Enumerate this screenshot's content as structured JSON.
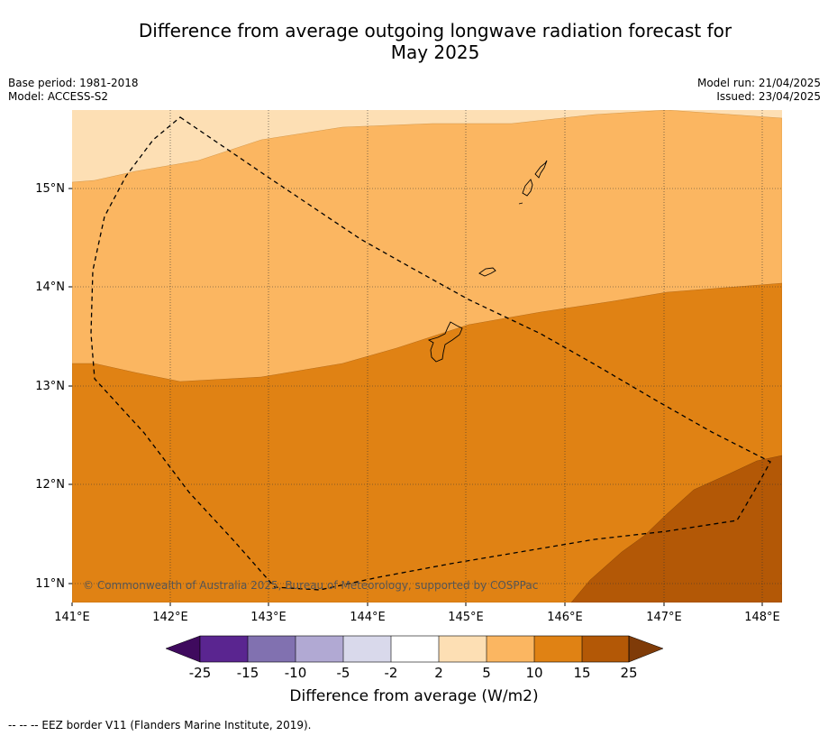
{
  "title_line1": "Difference from average outgoing longwave radiation forecast for",
  "title_line2": "May 2025",
  "meta": {
    "base_period": "Base period: 1981-2018",
    "model": "Model: ACCESS-S2",
    "model_run": "Model run: 21/04/2025",
    "issued": "Issued: 23/04/2025"
  },
  "map": {
    "lon_labels": [
      "141°E",
      "142°E",
      "143°E",
      "144°E",
      "145°E",
      "146°E",
      "147°E",
      "148°E"
    ],
    "lat_labels": [
      "15°N",
      "14°N",
      "13°N",
      "12°N",
      "11°N"
    ],
    "copyright": "© Commonwealth of Australia 2025, Bureau of Meteorology, supported by COSPPac"
  },
  "colorbar": {
    "labels": [
      "-25",
      "-15",
      "-10",
      "-5",
      "-2",
      "2",
      "5",
      "10",
      "15",
      "25"
    ],
    "colors": [
      "#3f0a5e",
      "#5a2590",
      "#8171b0",
      "#b1a9d3",
      "#d9d9eb",
      "#ffffff",
      "#fddfb4",
      "#fbb661",
      "#e08214",
      "#b35806",
      "#7f3b08"
    ],
    "title": "Difference from average (W/m2)"
  },
  "footnote": "--  --  -- EEZ border V11 (Flanders Marine Institute, 2019)."
}
